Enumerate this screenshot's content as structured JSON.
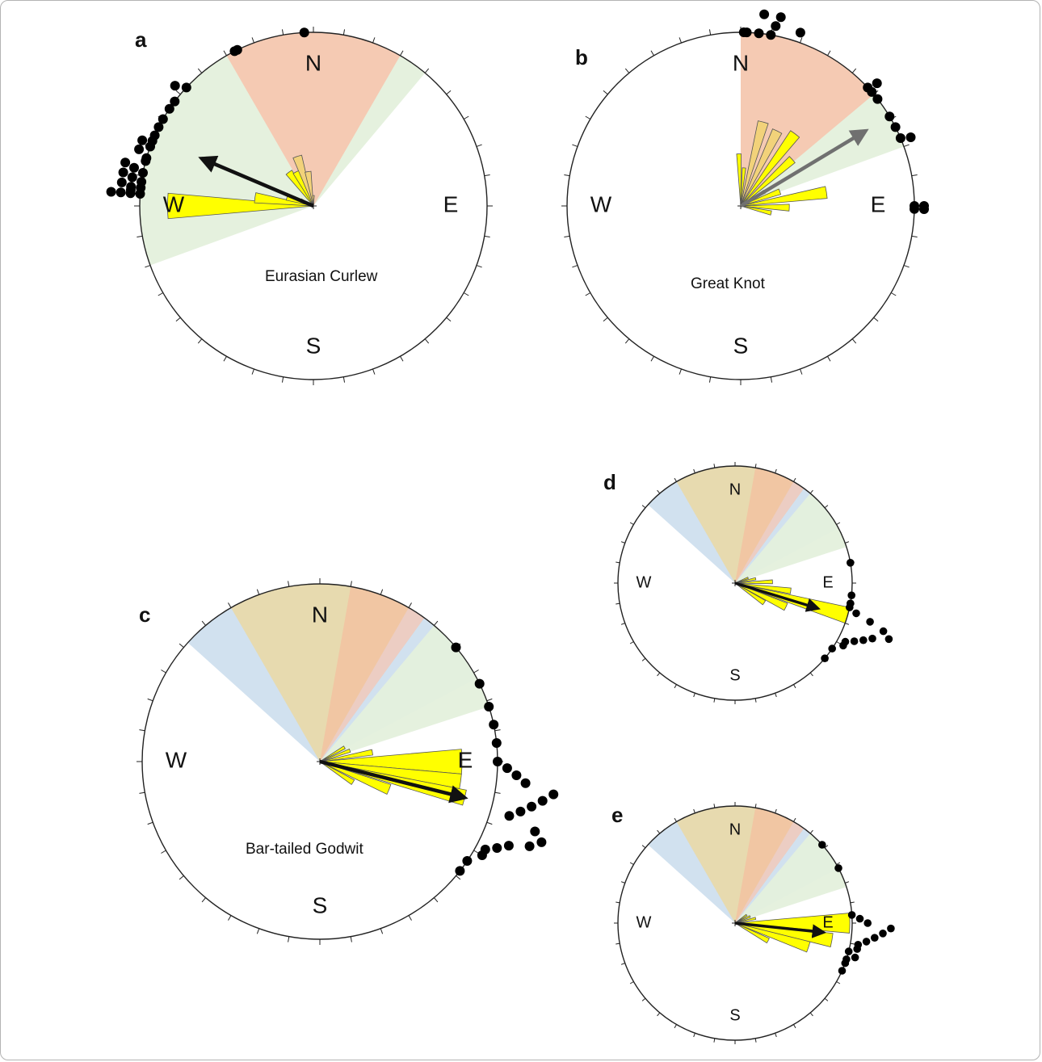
{
  "colors": {
    "salmon": "#f5c7b0",
    "green": "#e4f0dc",
    "blue": "#cfdfee",
    "tan": "#e8d9ab",
    "orange": "#f1c5a2",
    "pink": "#ebcdc4",
    "yellow": "#ffff00",
    "ochre": "#f2d27a",
    "dot": "#000000"
  },
  "chart_data": [
    {
      "type": "circular",
      "panel": "a",
      "title": "Eurasian Curlew",
      "directions": [
        "N",
        "E",
        "S",
        "W"
      ],
      "sectors": [
        {
          "from": -110,
          "to": 40,
          "color": "green"
        },
        {
          "from": -30,
          "to": 30,
          "color": "salmon"
        }
      ],
      "bars": [
        {
          "angle": -90,
          "length": 0.84,
          "width": 10,
          "color": "yellow"
        },
        {
          "angle": -82,
          "length": 0.34,
          "width": 10,
          "color": "yellow"
        },
        {
          "angle": -73,
          "length": 0.16,
          "width": 10,
          "color": "yellow"
        },
        {
          "angle": -64,
          "length": 0.08,
          "width": 10,
          "color": "yellow"
        },
        {
          "angle": -36,
          "length": 0.24,
          "width": 10,
          "color": "yellow"
        },
        {
          "angle": -27,
          "length": 0.22,
          "width": 10,
          "color": "yellow"
        },
        {
          "angle": -18,
          "length": 0.3,
          "width": 10,
          "color": "ochre"
        },
        {
          "angle": -9,
          "length": 0.2,
          "width": 10,
          "color": "ochre"
        },
        {
          "angle": 0,
          "length": 0.06,
          "width": 10,
          "color": "ochre"
        }
      ],
      "mean_vector": {
        "angle": -67,
        "length": 0.7,
        "color": "#111111"
      },
      "dots": [
        -86,
        -86,
        -86,
        -86,
        -85,
        -84,
        -84,
        -83,
        -82,
        -81,
        -80,
        -79,
        -78,
        -77,
        -75,
        -74,
        -72,
        -70,
        -69,
        -68,
        -66,
        -63,
        -60,
        -56,
        -53,
        -49,
        -47,
        -26,
        -27,
        -3
      ],
      "dots_outward": [
        0,
        1,
        2,
        3,
        1,
        0,
        1,
        2,
        0,
        1,
        2,
        0,
        1,
        2,
        0,
        0,
        1,
        0,
        1,
        0,
        0,
        0,
        0,
        0,
        0,
        1,
        0,
        0,
        0,
        0
      ]
    },
    {
      "type": "circular",
      "panel": "b",
      "title": "Great Knot",
      "directions": [
        "N",
        "E",
        "S",
        "W"
      ],
      "sectors": [
        {
          "from": 0,
          "to": 70,
          "color": "green"
        },
        {
          "from": 0,
          "to": 50,
          "color": "salmon"
        }
      ],
      "bars": [
        {
          "angle": -2,
          "length": 0.3,
          "width": 5,
          "color": "yellow"
        },
        {
          "angle": 5,
          "length": 0.22,
          "width": 5,
          "color": "yellow"
        },
        {
          "angle": 15,
          "length": 0.5,
          "width": 7,
          "color": "ochre"
        },
        {
          "angle": 26,
          "length": 0.48,
          "width": 7,
          "color": "ochre"
        },
        {
          "angle": 37,
          "length": 0.52,
          "width": 7,
          "color": "yellow"
        },
        {
          "angle": 48,
          "length": 0.4,
          "width": 7,
          "color": "yellow"
        },
        {
          "angle": 59,
          "length": 0.16,
          "width": 7,
          "color": "yellow"
        },
        {
          "angle": 70,
          "length": 0.24,
          "width": 8,
          "color": "yellow"
        },
        {
          "angle": 81,
          "length": 0.5,
          "width": 8,
          "color": "yellow"
        },
        {
          "angle": 92,
          "length": 0.28,
          "width": 8,
          "color": "yellow"
        },
        {
          "angle": 103,
          "length": 0.18,
          "width": 8,
          "color": "yellow"
        }
      ],
      "mean_vector": {
        "angle": 59,
        "length": 0.84,
        "color": "#707070"
      },
      "dots": [
        1,
        2,
        6,
        7,
        10,
        11,
        12,
        19,
        47,
        48,
        49,
        52,
        59,
        63,
        67,
        68,
        90,
        90,
        91,
        91
      ],
      "dots_outward": [
        0,
        0,
        0,
        2,
        0,
        1,
        2,
        1,
        0,
        1,
        0,
        0,
        0,
        0,
        0,
        1,
        0,
        1,
        0,
        1
      ]
    },
    {
      "type": "circular",
      "panel": "c",
      "title": "Bar-tailed Godwit",
      "directions": [
        "N",
        "E",
        "S",
        "W"
      ],
      "sectors": [
        {
          "from": -48,
          "to": 62,
          "color": "blue"
        },
        {
          "from": 40,
          "to": 72,
          "color": "green"
        },
        {
          "from": -30,
          "to": 30,
          "color": "tan"
        },
        {
          "from": 10,
          "to": 36,
          "color": "orange"
        },
        {
          "from": 30,
          "to": 36,
          "color": "pink"
        }
      ],
      "bars": [
        {
          "angle": 60,
          "length": 0.16,
          "width": 6,
          "color": "yellow"
        },
        {
          "angle": 70,
          "length": 0.18,
          "width": 6,
          "color": "yellow"
        },
        {
          "angle": 80,
          "length": 0.3,
          "width": 6,
          "color": "yellow"
        },
        {
          "angle": 90,
          "length": 0.8,
          "width": 10,
          "color": "yellow"
        },
        {
          "angle": 98,
          "length": 0.8,
          "width": 6,
          "color": "yellow"
        },
        {
          "angle": 104,
          "length": 0.84,
          "width": 6,
          "color": "yellow"
        },
        {
          "angle": 112,
          "length": 0.42,
          "width": 8,
          "color": "yellow"
        },
        {
          "angle": 122,
          "length": 0.22,
          "width": 8,
          "color": "yellow"
        }
      ],
      "mean_vector": {
        "angle": 104,
        "length": 0.84,
        "color": "#111111"
      },
      "dots": [
        50,
        64,
        72,
        78,
        84,
        90,
        92,
        94,
        96,
        98,
        100,
        102,
        104,
        106,
        108,
        110,
        112,
        114,
        116,
        118,
        120,
        124,
        128
      ],
      "dots_outward": [
        0,
        0,
        0,
        0,
        0,
        0,
        1,
        2,
        3,
        6,
        5,
        4,
        3,
        2,
        5,
        6,
        5,
        3,
        2,
        1,
        1,
        0,
        0
      ]
    },
    {
      "type": "circular",
      "panel": "d",
      "title": "",
      "directions": [
        "N",
        "E",
        "S",
        "W"
      ],
      "sectors": [
        {
          "from": -48,
          "to": 62,
          "color": "blue"
        },
        {
          "from": 40,
          "to": 72,
          "color": "green"
        },
        {
          "from": -30,
          "to": 30,
          "color": "tan"
        },
        {
          "from": 10,
          "to": 36,
          "color": "orange"
        },
        {
          "from": 30,
          "to": 36,
          "color": "pink"
        }
      ],
      "bars": [
        {
          "angle": 68,
          "length": 0.12,
          "width": 6,
          "color": "yellow"
        },
        {
          "angle": 78,
          "length": 0.18,
          "width": 6,
          "color": "yellow"
        },
        {
          "angle": 88,
          "length": 0.32,
          "width": 6,
          "color": "yellow"
        },
        {
          "angle": 98,
          "length": 0.48,
          "width": 6,
          "color": "yellow"
        },
        {
          "angle": 106,
          "length": 1.0,
          "width": 8,
          "color": "yellow"
        },
        {
          "angle": 115,
          "length": 0.48,
          "width": 8,
          "color": "yellow"
        },
        {
          "angle": 124,
          "length": 0.3,
          "width": 8,
          "color": "yellow"
        }
      ],
      "mean_vector": {
        "angle": 107,
        "length": 0.74,
        "color": "#111111"
      },
      "dots": [
        80,
        96,
        100,
        102,
        104,
        106,
        108,
        110,
        112,
        114,
        116,
        118,
        120,
        124,
        130
      ],
      "dots_outward": [
        0,
        0,
        0,
        0,
        1,
        3,
        5,
        6,
        4,
        3,
        2,
        1,
        1,
        0,
        0
      ]
    },
    {
      "type": "circular",
      "panel": "e",
      "title": "",
      "directions": [
        "N",
        "E",
        "S",
        "W"
      ],
      "sectors": [
        {
          "from": -48,
          "to": 62,
          "color": "blue"
        },
        {
          "from": 40,
          "to": 72,
          "color": "green"
        },
        {
          "from": -30,
          "to": 30,
          "color": "tan"
        },
        {
          "from": 10,
          "to": 36,
          "color": "orange"
        },
        {
          "from": 30,
          "to": 36,
          "color": "pink"
        }
      ],
      "bars": [
        {
          "angle": 55,
          "length": 0.12,
          "width": 6,
          "color": "yellow"
        },
        {
          "angle": 66,
          "length": 0.14,
          "width": 6,
          "color": "yellow"
        },
        {
          "angle": 77,
          "length": 0.18,
          "width": 6,
          "color": "yellow"
        },
        {
          "angle": 90,
          "length": 0.98,
          "width": 10,
          "color": "yellow"
        },
        {
          "angle": 100,
          "length": 0.84,
          "width": 8,
          "color": "yellow"
        },
        {
          "angle": 108,
          "length": 0.66,
          "width": 8,
          "color": "yellow"
        },
        {
          "angle": 118,
          "length": 0.32,
          "width": 8,
          "color": "yellow"
        }
      ],
      "mean_vector": {
        "angle": 96,
        "length": 0.76,
        "color": "#111111"
      },
      "dots": [
        48,
        62,
        86,
        88,
        90,
        92,
        94,
        96,
        98,
        100,
        102,
        104,
        106,
        108,
        110,
        114
      ],
      "dots_outward": [
        0,
        0,
        0,
        1,
        2,
        5,
        4,
        3,
        2,
        1,
        1,
        0,
        1,
        0,
        0,
        0
      ]
    }
  ]
}
